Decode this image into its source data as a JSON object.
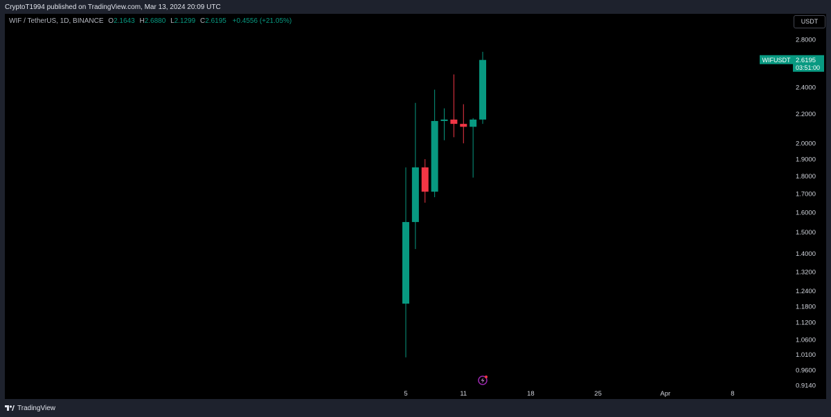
{
  "header": {
    "published": "CryptoT1994 published on TradingView.com, Mar 13, 2024 20:09 UTC"
  },
  "legend": {
    "symbol": "WIF / TetherUS, 1D, BINANCE",
    "o_label": "O",
    "o": "2.1643",
    "h_label": "H",
    "h": "2.6880",
    "l_label": "L",
    "l": "2.1299",
    "c_label": "C",
    "c": "2.6195",
    "change": "+0.4556 (+21.05%)"
  },
  "currency_button": "USDT",
  "footer": {
    "brand": "TradingView"
  },
  "colors": {
    "up": "#089981",
    "down": "#f23645",
    "background": "#000000",
    "axis_text": "#d1d4dc"
  },
  "chart_data": {
    "type": "candlestick",
    "scale": "log",
    "ylim": [
      0.914,
      2.95
    ],
    "grid": false,
    "x_ticks": [
      {
        "label": "5",
        "index": 0
      },
      {
        "label": "11",
        "index": 6
      },
      {
        "label": "18",
        "index": 13
      },
      {
        "label": "25",
        "index": 20
      },
      {
        "label": "Apr",
        "index": 27
      },
      {
        "label": "8",
        "index": 34
      }
    ],
    "y_ticks": [
      "2.8000",
      "2.4000",
      "2.2000",
      "2.0000",
      "1.9000",
      "1.8000",
      "1.7000",
      "1.6000",
      "1.5000",
      "1.4000",
      "1.3200",
      "1.2400",
      "1.1800",
      "1.1200",
      "1.0600",
      "1.0100",
      "0.9600",
      "0.9140"
    ],
    "candles": [
      {
        "o": 1.19,
        "h": 1.85,
        "l": 1.0,
        "c": 1.55
      },
      {
        "o": 1.55,
        "h": 2.28,
        "l": 1.42,
        "c": 1.85
      },
      {
        "o": 1.85,
        "h": 1.9,
        "l": 1.65,
        "c": 1.71
      },
      {
        "o": 1.71,
        "h": 2.38,
        "l": 1.68,
        "c": 2.15
      },
      {
        "o": 2.15,
        "h": 2.24,
        "l": 2.02,
        "c": 2.16
      },
      {
        "o": 2.16,
        "h": 2.5,
        "l": 2.04,
        "c": 2.13
      },
      {
        "o": 2.13,
        "h": 2.27,
        "l": 2.0,
        "c": 2.11
      },
      {
        "o": 2.11,
        "h": 2.17,
        "l": 1.79,
        "c": 2.16
      },
      {
        "o": 2.16,
        "h": 2.69,
        "l": 2.13,
        "c": 2.62
      }
    ],
    "last_price": {
      "symbol": "WIFUSDT",
      "value": "2.6195",
      "countdown": "03:51:00"
    }
  }
}
